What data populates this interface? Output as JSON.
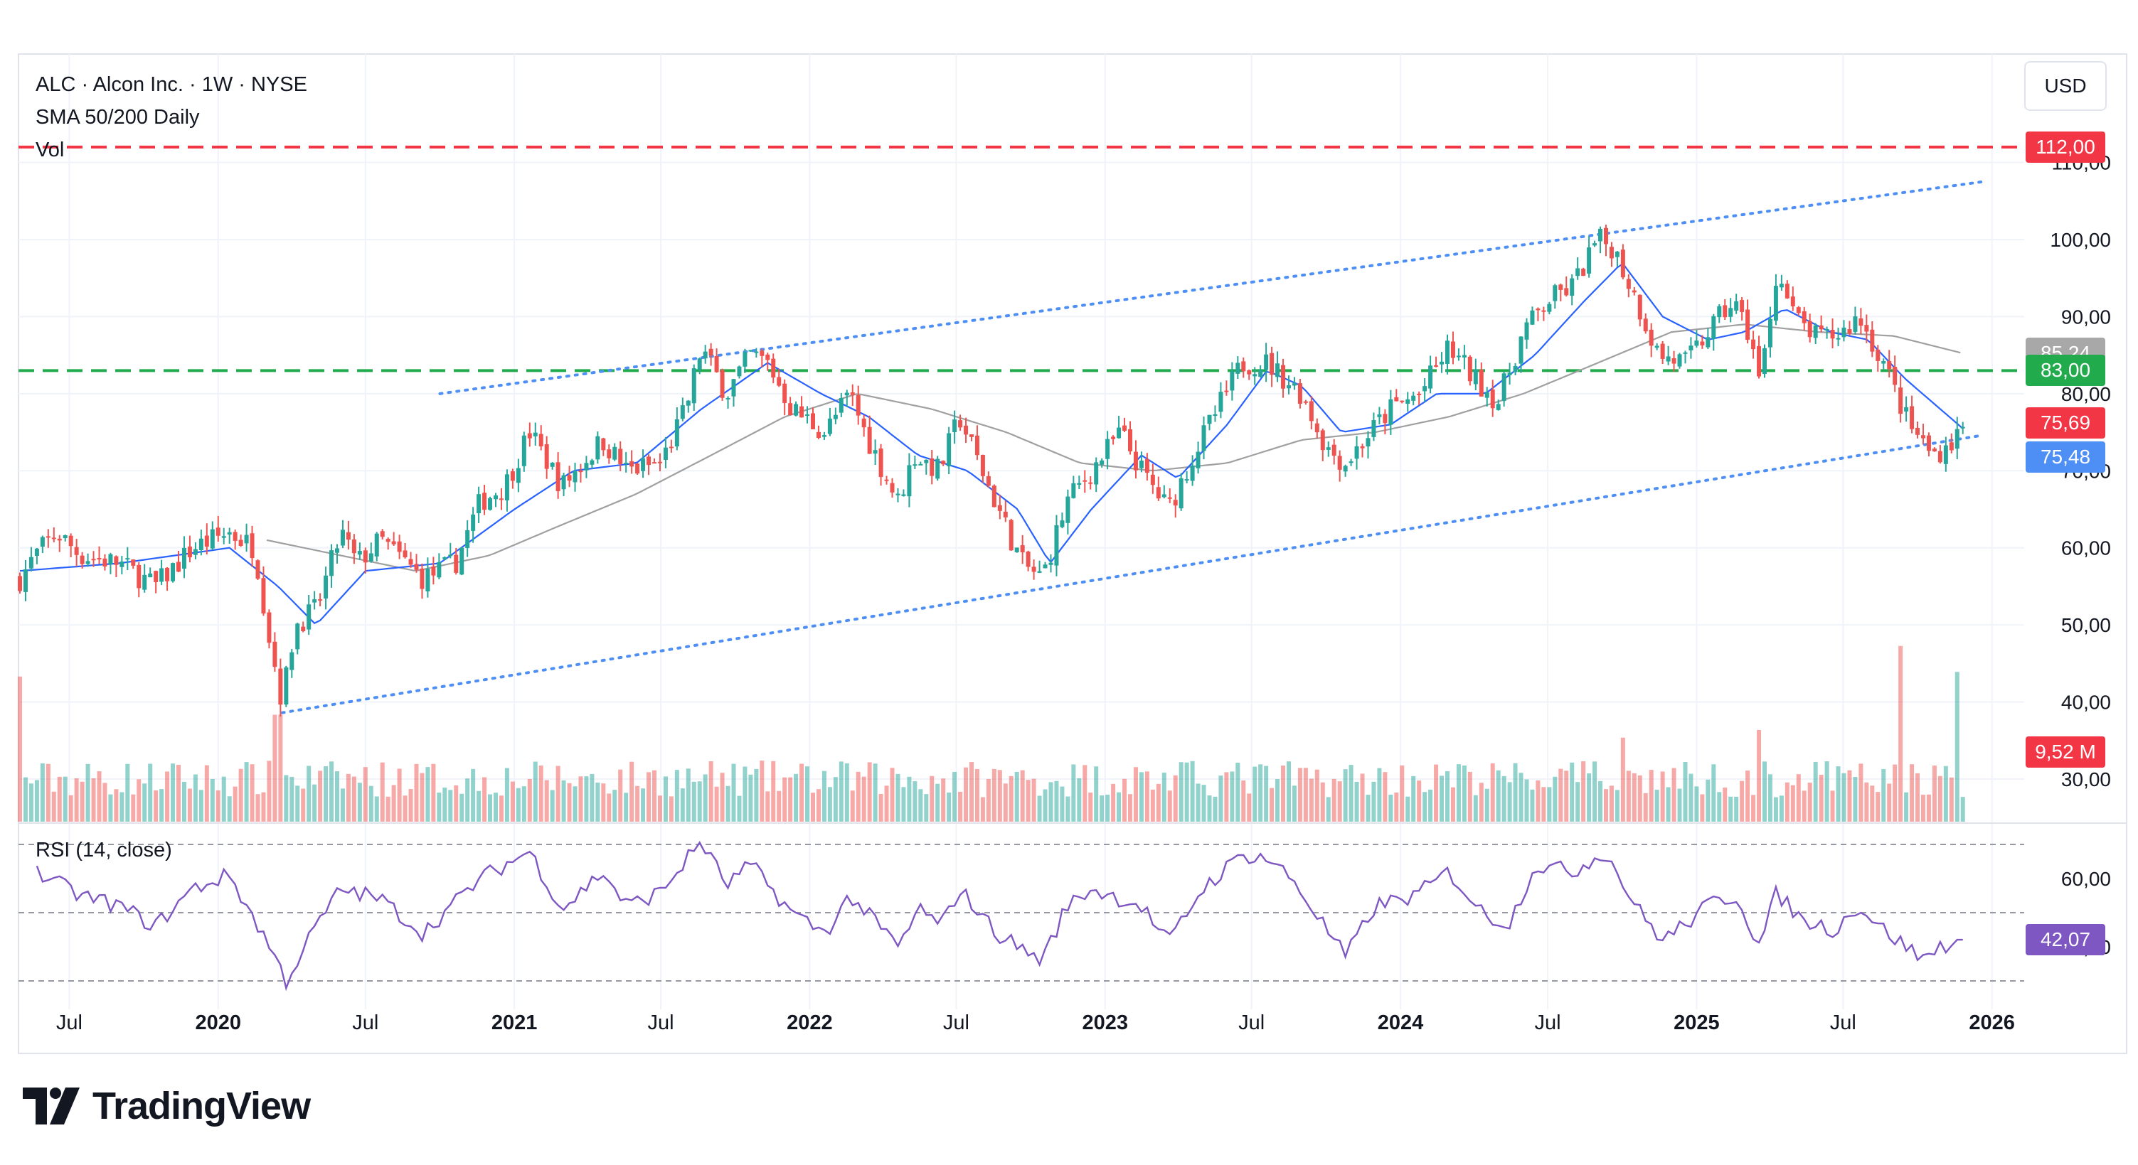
{
  "legend": {
    "symbol_line": "ALC · Alcon Inc. · 1W · NYSE",
    "sma_line": "SMA 50/200 Daily",
    "vol_line": "Vol"
  },
  "currency": "USD",
  "rsi_label": "RSI (14, close)",
  "price_tags": [
    {
      "label": "112,00",
      "value": 112.0,
      "color": "#f23645"
    },
    {
      "label": "85,24",
      "value": 85.24,
      "color": "#a8a8a8"
    },
    {
      "label": "83,00",
      "value": 83.0,
      "color": "#22ab4c"
    },
    {
      "label": "75,69",
      "value": 75.69,
      "color": "#f23645"
    },
    {
      "label": "75,48",
      "value": 75.48,
      "color": "#4e8ff5"
    }
  ],
  "volume_tag": {
    "label": "9,52 M",
    "color": "#f23645"
  },
  "rsi_tag": {
    "label": "42,07",
    "value": 42.07,
    "color": "#7e57c2"
  },
  "brand": "TradingView",
  "colors": {
    "up": "#26a69a",
    "down": "#ef5350",
    "sma50": "#2962ff",
    "sma200": "#a0a0a0",
    "rsi": "#7e57c2"
  },
  "chart_data": {
    "type": "candlestick",
    "price_axis": {
      "ticks": [
        30,
        40,
        50,
        60,
        70,
        80,
        90,
        100,
        110
      ],
      "tick_labels": [
        "30,00",
        "40,00",
        "50,00",
        "60,00",
        "70,00",
        "80,00",
        "90,00",
        "100,00",
        "110,00"
      ],
      "range": [
        25,
        115
      ]
    },
    "rsi_axis": {
      "ticks": [
        40,
        60
      ],
      "tick_labels": [
        "40,00",
        "60,00"
      ],
      "band": [
        30,
        70
      ],
      "mid": 50
    },
    "time_axis": {
      "labels": [
        "Jul",
        "2020",
        "Jul",
        "2021",
        "Jul",
        "2022",
        "Jul",
        "2023",
        "Jul",
        "2024",
        "Jul",
        "2025",
        "Jul",
        "2026"
      ],
      "bold": [
        "2020",
        "2021",
        "2022",
        "2023",
        "2024",
        "2025",
        "2026"
      ],
      "start": "2019-05-01",
      "end": "2026-01-25"
    },
    "horizontal_lines": [
      {
        "value": 112.0,
        "color": "#f23645",
        "style": "dashed"
      },
      {
        "value": 83.0,
        "color": "#22ab4c",
        "style": "dashed"
      }
    ],
    "trendlines": [
      {
        "from": [
          "2020-03-20",
          38.6
        ],
        "to": [
          "2025-12-20",
          74.6
        ],
        "color": "#4e8ff5",
        "style": "dotted"
      },
      {
        "from": [
          "2020-10-01",
          80.0
        ],
        "to": [
          "2025-12-20",
          107.5
        ],
        "color": "#4e8ff5",
        "style": "dotted"
      }
    ],
    "close_anchors": [
      [
        "2019-05-01",
        56
      ],
      [
        "2019-05-20",
        59
      ],
      [
        "2019-06-15",
        62
      ],
      [
        "2019-07-15",
        59
      ],
      [
        "2019-09-01",
        58
      ],
      [
        "2019-10-15",
        55
      ],
      [
        "2019-12-01",
        60
      ],
      [
        "2020-01-15",
        62
      ],
      [
        "2020-02-15",
        60
      ],
      [
        "2020-03-05",
        48
      ],
      [
        "2020-03-20",
        40
      ],
      [
        "2020-04-05",
        50
      ],
      [
        "2020-05-01",
        52
      ],
      [
        "2020-06-01",
        62
      ],
      [
        "2020-06-20",
        58
      ],
      [
        "2020-07-20",
        61
      ],
      [
        "2020-09-10",
        56
      ],
      [
        "2020-10-20",
        58
      ],
      [
        "2020-11-20",
        66
      ],
      [
        "2020-12-20",
        68
      ],
      [
        "2021-01-20",
        75
      ],
      [
        "2021-03-01",
        68
      ],
      [
        "2021-04-20",
        74
      ],
      [
        "2021-05-20",
        70
      ],
      [
        "2021-07-01",
        71
      ],
      [
        "2021-08-01",
        78
      ],
      [
        "2021-08-20",
        86
      ],
      [
        "2021-09-20",
        80
      ],
      [
        "2021-10-20",
        85
      ],
      [
        "2021-11-10",
        84
      ],
      [
        "2021-12-10",
        78
      ],
      [
        "2022-01-20",
        75
      ],
      [
        "2022-02-20",
        80
      ],
      [
        "2022-03-10",
        75
      ],
      [
        "2022-04-20",
        66
      ],
      [
        "2022-05-10",
        72
      ],
      [
        "2022-06-10",
        70
      ],
      [
        "2022-07-05",
        77
      ],
      [
        "2022-08-10",
        68
      ],
      [
        "2022-09-20",
        58
      ],
      [
        "2022-10-15",
        56
      ],
      [
        "2022-11-15",
        66
      ],
      [
        "2022-12-15",
        70
      ],
      [
        "2023-01-20",
        75
      ],
      [
        "2023-02-15",
        70
      ],
      [
        "2023-03-20",
        65
      ],
      [
        "2023-04-20",
        72
      ],
      [
        "2023-05-20",
        78
      ],
      [
        "2023-06-20",
        84
      ],
      [
        "2023-07-20",
        84
      ],
      [
        "2023-09-01",
        80
      ],
      [
        "2023-10-01",
        73
      ],
      [
        "2023-10-25",
        71
      ],
      [
        "2023-11-25",
        75
      ],
      [
        "2023-12-20",
        78
      ],
      [
        "2024-01-25",
        80
      ],
      [
        "2024-03-01",
        86
      ],
      [
        "2024-04-01",
        82
      ],
      [
        "2024-05-01",
        79
      ],
      [
        "2024-06-01",
        88
      ],
      [
        "2024-07-01",
        92
      ],
      [
        "2024-08-01",
        94
      ],
      [
        "2024-09-01",
        100
      ],
      [
        "2024-09-20",
        99
      ],
      [
        "2024-10-15",
        93
      ],
      [
        "2024-11-15",
        85
      ],
      [
        "2024-12-20",
        84
      ],
      [
        "2025-01-15",
        88
      ],
      [
        "2025-02-15",
        92
      ],
      [
        "2025-03-10",
        87
      ],
      [
        "2025-03-20",
        81
      ],
      [
        "2025-04-10",
        96
      ],
      [
        "2025-05-01",
        90
      ],
      [
        "2025-06-01",
        87
      ],
      [
        "2025-07-01",
        88
      ],
      [
        "2025-07-20",
        90
      ],
      [
        "2025-08-20",
        84
      ],
      [
        "2025-09-20",
        76
      ],
      [
        "2025-10-20",
        72
      ],
      [
        "2025-11-15",
        74
      ],
      [
        "2025-11-26",
        75.69
      ]
    ],
    "sma50_anchors": [
      [
        "2019-05-01",
        57
      ],
      [
        "2019-09-01",
        58
      ],
      [
        "2020-01-15",
        60
      ],
      [
        "2020-03-15",
        55
      ],
      [
        "2020-05-01",
        50
      ],
      [
        "2020-07-01",
        57
      ],
      [
        "2020-10-01",
        58
      ],
      [
        "2021-01-01",
        65
      ],
      [
        "2021-03-15",
        70
      ],
      [
        "2021-06-01",
        71
      ],
      [
        "2021-08-20",
        78
      ],
      [
        "2021-11-10",
        84
      ],
      [
        "2022-01-15",
        80
      ],
      [
        "2022-03-15",
        77
      ],
      [
        "2022-05-15",
        72
      ],
      [
        "2022-07-15",
        70
      ],
      [
        "2022-09-15",
        65
      ],
      [
        "2022-10-25",
        58
      ],
      [
        "2022-12-15",
        65
      ],
      [
        "2023-02-15",
        72
      ],
      [
        "2023-04-01",
        69
      ],
      [
        "2023-06-01",
        76
      ],
      [
        "2023-07-20",
        83
      ],
      [
        "2023-09-01",
        81
      ],
      [
        "2023-10-20",
        75
      ],
      [
        "2023-12-20",
        76
      ],
      [
        "2024-02-15",
        80
      ],
      [
        "2024-04-15",
        80
      ],
      [
        "2024-06-15",
        85
      ],
      [
        "2024-08-15",
        92
      ],
      [
        "2024-10-01",
        97
      ],
      [
        "2024-11-20",
        90
      ],
      [
        "2025-01-15",
        87
      ],
      [
        "2025-03-01",
        88
      ],
      [
        "2025-04-20",
        91
      ],
      [
        "2025-06-15",
        88
      ],
      [
        "2025-08-01",
        87
      ],
      [
        "2025-09-15",
        82
      ],
      [
        "2025-11-26",
        75.48
      ]
    ],
    "sma200_anchors": [
      [
        "2020-03-01",
        61
      ],
      [
        "2020-06-01",
        59
      ],
      [
        "2020-09-01",
        57
      ],
      [
        "2020-12-01",
        59
      ],
      [
        "2021-03-01",
        63
      ],
      [
        "2021-06-01",
        67
      ],
      [
        "2021-09-01",
        72
      ],
      [
        "2021-12-01",
        77
      ],
      [
        "2022-03-01",
        80
      ],
      [
        "2022-06-01",
        78
      ],
      [
        "2022-09-01",
        75
      ],
      [
        "2022-12-01",
        71
      ],
      [
        "2023-03-01",
        70
      ],
      [
        "2023-06-01",
        71
      ],
      [
        "2023-09-01",
        74
      ],
      [
        "2023-12-01",
        75
      ],
      [
        "2024-03-01",
        77
      ],
      [
        "2024-06-01",
        80
      ],
      [
        "2024-09-01",
        84
      ],
      [
        "2024-12-01",
        88
      ],
      [
        "2025-03-01",
        89
      ],
      [
        "2025-06-01",
        88
      ],
      [
        "2025-09-01",
        87.5
      ],
      [
        "2025-11-26",
        85.24
      ]
    ],
    "rsi_anchors": [
      [
        "2019-05-20",
        62
      ],
      [
        "2019-07-15",
        55
      ],
      [
        "2019-09-01",
        52
      ],
      [
        "2019-10-15",
        46
      ],
      [
        "2019-12-01",
        57
      ],
      [
        "2020-01-15",
        61
      ],
      [
        "2020-03-05",
        40
      ],
      [
        "2020-03-25",
        30
      ],
      [
        "2020-05-01",
        46
      ],
      [
        "2020-06-01",
        57
      ],
      [
        "2020-07-20",
        54
      ],
      [
        "2020-09-10",
        44
      ],
      [
        "2020-11-20",
        60
      ],
      [
        "2021-01-20",
        68
      ],
      [
        "2021-03-01",
        51
      ],
      [
        "2021-04-20",
        62
      ],
      [
        "2021-05-20",
        52
      ],
      [
        "2021-07-01",
        56
      ],
      [
        "2021-08-20",
        71
      ],
      [
        "2021-09-20",
        58
      ],
      [
        "2021-10-20",
        64
      ],
      [
        "2021-12-10",
        50
      ],
      [
        "2022-01-20",
        44
      ],
      [
        "2022-02-20",
        55
      ],
      [
        "2022-04-20",
        40
      ],
      [
        "2022-05-20",
        52
      ],
      [
        "2022-06-10",
        45
      ],
      [
        "2022-07-05",
        57
      ],
      [
        "2022-08-20",
        44
      ],
      [
        "2022-10-15",
        36
      ],
      [
        "2022-11-15",
        52
      ],
      [
        "2022-12-15",
        57
      ],
      [
        "2023-02-15",
        52
      ],
      [
        "2023-03-20",
        41
      ],
      [
        "2023-05-01",
        57
      ],
      [
        "2023-06-20",
        67
      ],
      [
        "2023-07-20",
        66
      ],
      [
        "2023-08-20",
        60
      ],
      [
        "2023-10-25",
        37
      ],
      [
        "2023-12-01",
        52
      ],
      [
        "2024-01-20",
        55
      ],
      [
        "2024-03-01",
        62
      ],
      [
        "2024-04-15",
        49
      ],
      [
        "2024-05-15",
        47
      ],
      [
        "2024-06-15",
        64
      ],
      [
        "2024-08-01",
        62
      ],
      [
        "2024-09-10",
        68
      ],
      [
        "2024-10-20",
        51
      ],
      [
        "2024-11-20",
        42
      ],
      [
        "2024-12-20",
        47
      ],
      [
        "2025-01-20",
        53
      ],
      [
        "2025-02-20",
        55
      ],
      [
        "2025-03-20",
        40
      ],
      [
        "2025-04-10",
        56
      ],
      [
        "2025-05-10",
        48
      ],
      [
        "2025-06-20",
        45
      ],
      [
        "2025-07-20",
        52
      ],
      [
        "2025-08-20",
        45
      ],
      [
        "2025-10-10",
        36
      ],
      [
        "2025-10-25",
        40
      ],
      [
        "2025-11-26",
        42.07
      ]
    ],
    "volume_spikes": [
      [
        "2019-05-01",
        9.5
      ],
      [
        "2020-03-15",
        7
      ],
      [
        "2024-10-01",
        5.5
      ],
      [
        "2025-03-20",
        6
      ],
      [
        "2025-09-10",
        11.5
      ],
      [
        "2025-11-20",
        9.8
      ]
    ]
  }
}
